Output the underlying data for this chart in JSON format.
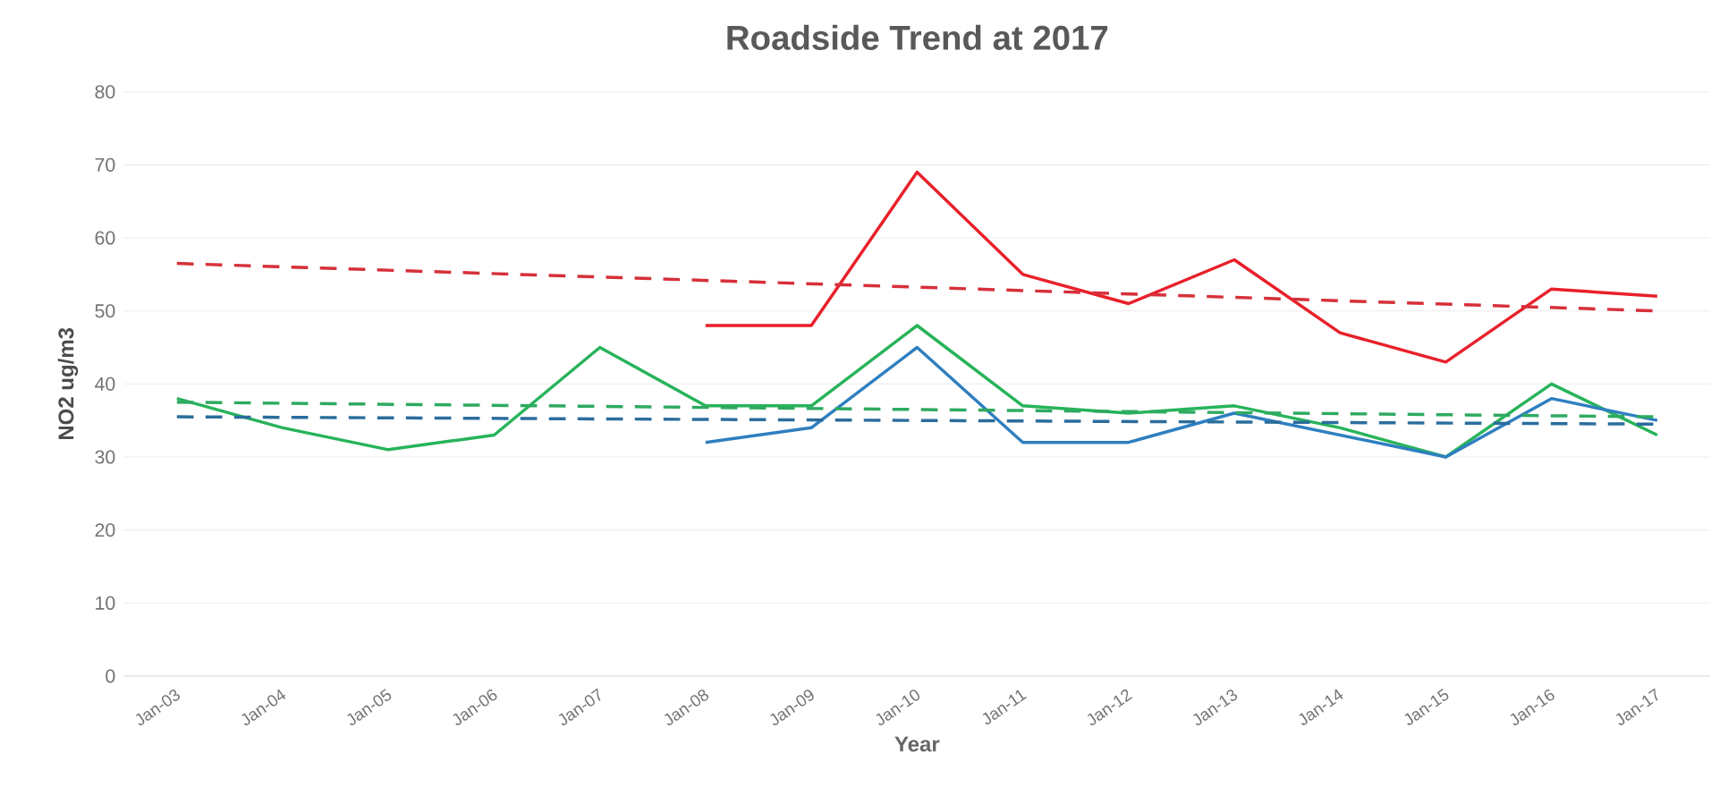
{
  "chart_data": {
    "type": "line",
    "title": "Roadside Trend at 2017",
    "xlabel": "Year",
    "ylabel": "NO2 ug/m3",
    "categories": [
      "Jan-03",
      "Jan-04",
      "Jan-05",
      "Jan-06",
      "Jan-07",
      "Jan-08",
      "Jan-09",
      "Jan-10",
      "Jan-11",
      "Jan-12",
      "Jan-13",
      "Jan-14",
      "Jan-15",
      "Jan-16",
      "Jan-17"
    ],
    "series": [
      {
        "color": "#e8202a",
        "line_style": "solid",
        "values": [
          null,
          null,
          null,
          null,
          null,
          48,
          48,
          69,
          55,
          51,
          57,
          47,
          43,
          53,
          52
        ]
      },
      {
        "color": "#27b35a",
        "line_style": "solid",
        "values": [
          38,
          34,
          31,
          33,
          45,
          37,
          37,
          48,
          37,
          36,
          37,
          34,
          30,
          40,
          33
        ]
      },
      {
        "color": "#2e7fc0",
        "line_style": "solid",
        "values": [
          null,
          null,
          null,
          null,
          null,
          32,
          34,
          45,
          32,
          32,
          36,
          33,
          30,
          38,
          35
        ]
      },
      {
        "color": "#d6303a",
        "line_style": "dashed",
        "values": [
          56.5,
          null,
          null,
          null,
          null,
          null,
          null,
          null,
          null,
          null,
          null,
          null,
          null,
          null,
          50
        ]
      },
      {
        "color": "#2eaa60",
        "line_style": "dashed",
        "values": [
          37.5,
          null,
          null,
          null,
          null,
          null,
          null,
          null,
          null,
          null,
          null,
          null,
          null,
          null,
          35.5
        ]
      },
      {
        "color": "#2a6d9c",
        "line_style": "dashed",
        "values": [
          35.5,
          null,
          null,
          null,
          null,
          null,
          null,
          null,
          null,
          null,
          null,
          null,
          null,
          null,
          34.5
        ]
      }
    ],
    "ylim": [
      0,
      80
    ],
    "yticks": [
      0,
      10,
      20,
      30,
      40,
      50,
      60,
      70,
      80
    ],
    "grid": "y"
  }
}
